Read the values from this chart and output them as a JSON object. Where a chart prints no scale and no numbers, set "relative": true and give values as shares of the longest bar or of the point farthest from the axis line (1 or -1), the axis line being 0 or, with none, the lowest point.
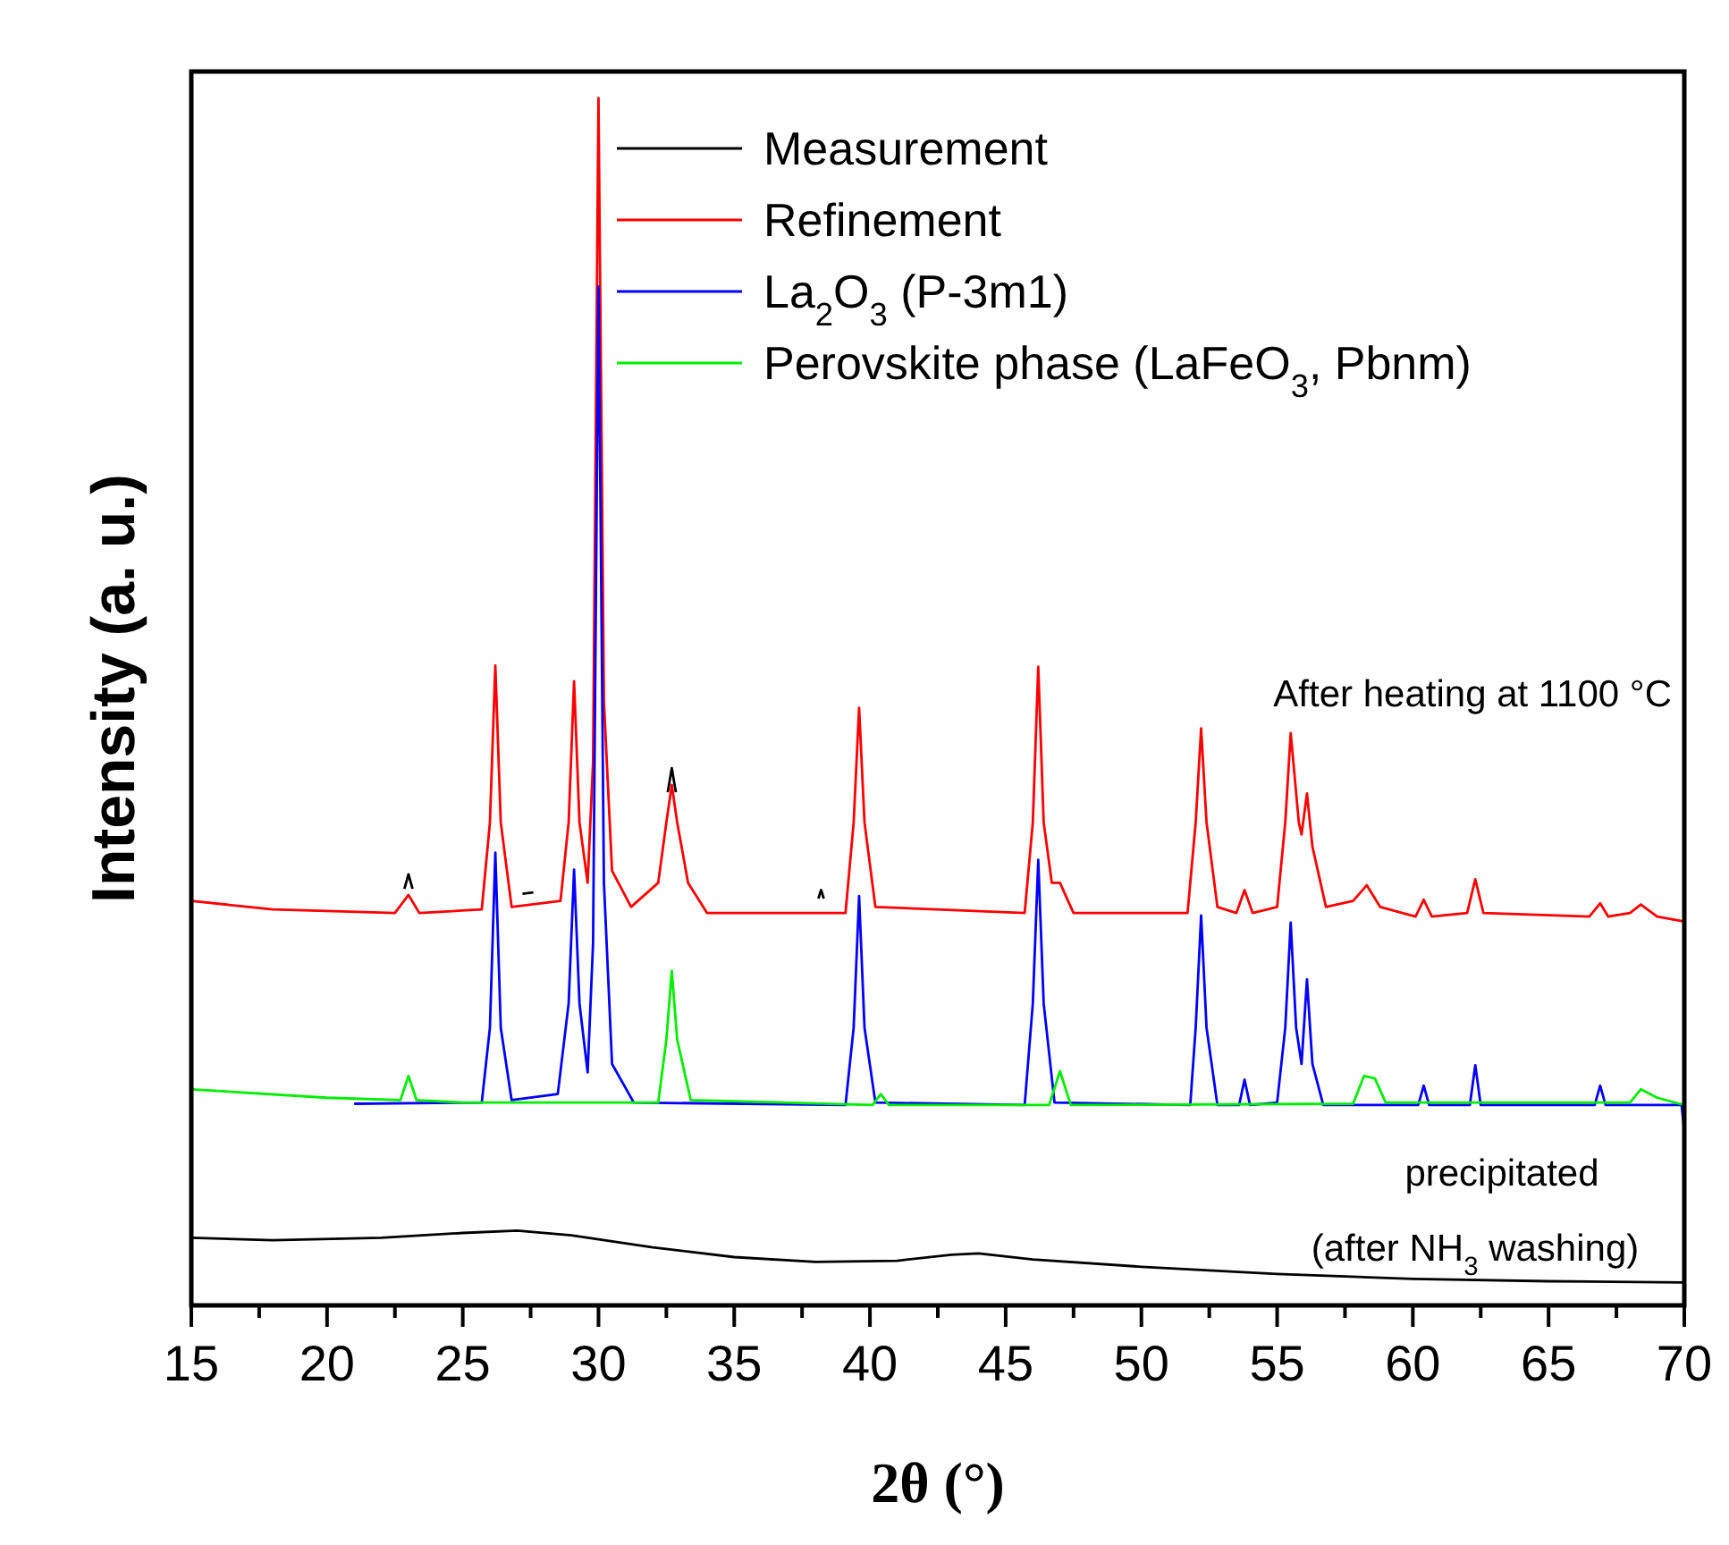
{
  "chart_data": {
    "type": "line",
    "relative": true,
    "xlabel": "2θ (°)",
    "ylabel": "Intensity (a. u.)",
    "legend": "top right",
    "xlim": [
      15,
      70
    ],
    "xticks": [
      15,
      {
        "value": 17.5,
        "label": null
      },
      20,
      {
        "value": 22.5,
        "label": null
      },
      25,
      {
        "value": 27.5,
        "label": null
      },
      30,
      {
        "value": 32.5,
        "label": null
      },
      35,
      {
        "value": 37.5,
        "label": null
      },
      40,
      {
        "value": 42.5,
        "label": null
      },
      45,
      {
        "value": 47.5,
        "label": null
      },
      50,
      {
        "value": 52.5,
        "label": null
      },
      55,
      {
        "value": 57.5,
        "label": null
      },
      60,
      {
        "value": 62.5,
        "label": null
      },
      65,
      {
        "value": 67.5,
        "label": null
      },
      70
    ],
    "annotations": [
      "After heating at 1100 °C",
      "precipitated",
      "(after NH$_{3}$ washing)"
    ],
    "series": [
      {
        "name": "Measurement",
        "color": "#000000",
        "x": [
          22.85,
          23.0,
          23.15,
          25,
          27.2,
          27.6,
          30,
          32.55,
          32.7,
          32.85,
          35,
          38.1,
          38.2,
          38.3
        ],
        "values": [
          0.345,
          0.357,
          0.345,
          null,
          0.341,
          0.342,
          null,
          0.425,
          0.445,
          0.425,
          null,
          0.337,
          0.344,
          0.337
        ]
      },
      {
        "name": "Refinement",
        "color": "#ff0000",
        "x": [
          15,
          18,
          22.5,
          23.0,
          23.4,
          25.7,
          26.0,
          26.2,
          26.4,
          26.8,
          28.6,
          28.9,
          29.1,
          29.3,
          29.6,
          29.8,
          30.0,
          30.2,
          30.5,
          31.2,
          32.2,
          32.5,
          32.7,
          32.9,
          33.3,
          34,
          39.1,
          39.4,
          39.6,
          39.8,
          40.2,
          45.7,
          46.0,
          46.2,
          46.4,
          46.7,
          47.0,
          47.5,
          51.7,
          52.0,
          52.2,
          52.4,
          52.8,
          53.5,
          53.8,
          54.1,
          55.0,
          55.3,
          55.5,
          55.8,
          55.9,
          56.1,
          56.3,
          56.8,
          57.8,
          58.3,
          58.8,
          60.1,
          60.4,
          60.7,
          62.0,
          62.3,
          62.6,
          66.5,
          66.9,
          67.2,
          68.0,
          68.4,
          69,
          70
        ],
        "values": [
          0.335,
          0.328,
          0.325,
          0.34,
          0.325,
          0.328,
          0.4,
          0.53,
          0.4,
          0.33,
          0.335,
          0.4,
          0.517,
          0.4,
          0.35,
          0.45,
          1.0,
          0.5,
          0.36,
          0.33,
          0.35,
          0.4,
          0.431,
          0.4,
          0.35,
          0.325,
          0.325,
          0.4,
          0.495,
          0.4,
          0.33,
          0.325,
          0.4,
          0.529,
          0.4,
          0.35,
          0.35,
          0.325,
          0.325,
          0.4,
          0.478,
          0.4,
          0.33,
          0.325,
          0.344,
          0.325,
          0.33,
          0.4,
          0.474,
          0.4,
          0.39,
          0.424,
          0.38,
          0.33,
          0.335,
          0.348,
          0.33,
          0.322,
          0.336,
          0.322,
          0.325,
          0.353,
          0.325,
          0.322,
          0.333,
          0.322,
          0.325,
          0.332,
          0.322,
          0.318
        ]
      },
      {
        "name": "La$_{2}$O$_{3}$ (P-3m1)",
        "color": "#0000ff",
        "x": [
          21,
          25.7,
          26.0,
          26.2,
          26.4,
          26.8,
          28.5,
          28.9,
          29.1,
          29.3,
          29.6,
          29.8,
          30.0,
          30.2,
          30.5,
          31.3,
          39.1,
          39.4,
          39.6,
          39.8,
          40.2,
          45.7,
          46.0,
          46.2,
          46.4,
          46.8,
          51.8,
          52.0,
          52.2,
          52.4,
          52.8,
          53.6,
          53.8,
          54.0,
          55.0,
          55.3,
          55.5,
          55.7,
          55.9,
          56.1,
          56.3,
          56.7,
          60.2,
          60.4,
          60.6,
          62.1,
          62.3,
          62.5,
          66.7,
          66.9,
          67.1,
          69.9,
          70
        ],
        "values": [
          0.167,
          0.168,
          0.23,
          0.375,
          0.23,
          0.17,
          0.175,
          0.25,
          0.361,
          0.25,
          0.193,
          0.3,
          0.844,
          0.35,
          0.2,
          0.168,
          0.166,
          0.23,
          0.339,
          0.23,
          0.168,
          0.166,
          0.25,
          0.369,
          0.25,
          0.168,
          0.166,
          0.23,
          0.323,
          0.23,
          0.166,
          0.166,
          0.187,
          0.166,
          0.168,
          0.23,
          0.317,
          0.23,
          0.2,
          0.27,
          0.2,
          0.166,
          0.166,
          0.182,
          0.166,
          0.166,
          0.199,
          0.166,
          0.166,
          0.182,
          0.166,
          0.166,
          0.144
        ]
      },
      {
        "name": "Perovskite phase (LaFeO$_{3}$, Pbnm)",
        "color": "#00ee00",
        "x": [
          15,
          20,
          22.7,
          23.0,
          23.3,
          25,
          32.2,
          32.5,
          32.7,
          32.9,
          33.4,
          40.1,
          40.4,
          40.7,
          46.6,
          47.0,
          47.4,
          57.8,
          58.2,
          58.6,
          59.0,
          68.0,
          68.4,
          69,
          70
        ],
        "values": [
          0.179,
          0.172,
          0.17,
          0.19,
          0.17,
          0.168,
          0.168,
          0.22,
          0.277,
          0.22,
          0.17,
          0.166,
          0.175,
          0.166,
          0.166,
          0.194,
          0.166,
          0.167,
          0.19,
          0.188,
          0.168,
          0.168,
          0.179,
          0.172,
          0.166
        ]
      },
      {
        "color": "#000000",
        "x": [
          15,
          18,
          22,
          25,
          27,
          29,
          32,
          35,
          38,
          41,
          43,
          44,
          46,
          50,
          55,
          60,
          65,
          70
        ],
        "values": [
          0.056,
          0.054,
          0.056,
          0.06,
          0.062,
          0.058,
          0.048,
          0.04,
          0.036,
          0.037,
          0.042,
          0.043,
          0.038,
          0.032,
          0.026,
          0.022,
          0.02,
          0.019
        ]
      }
    ]
  }
}
